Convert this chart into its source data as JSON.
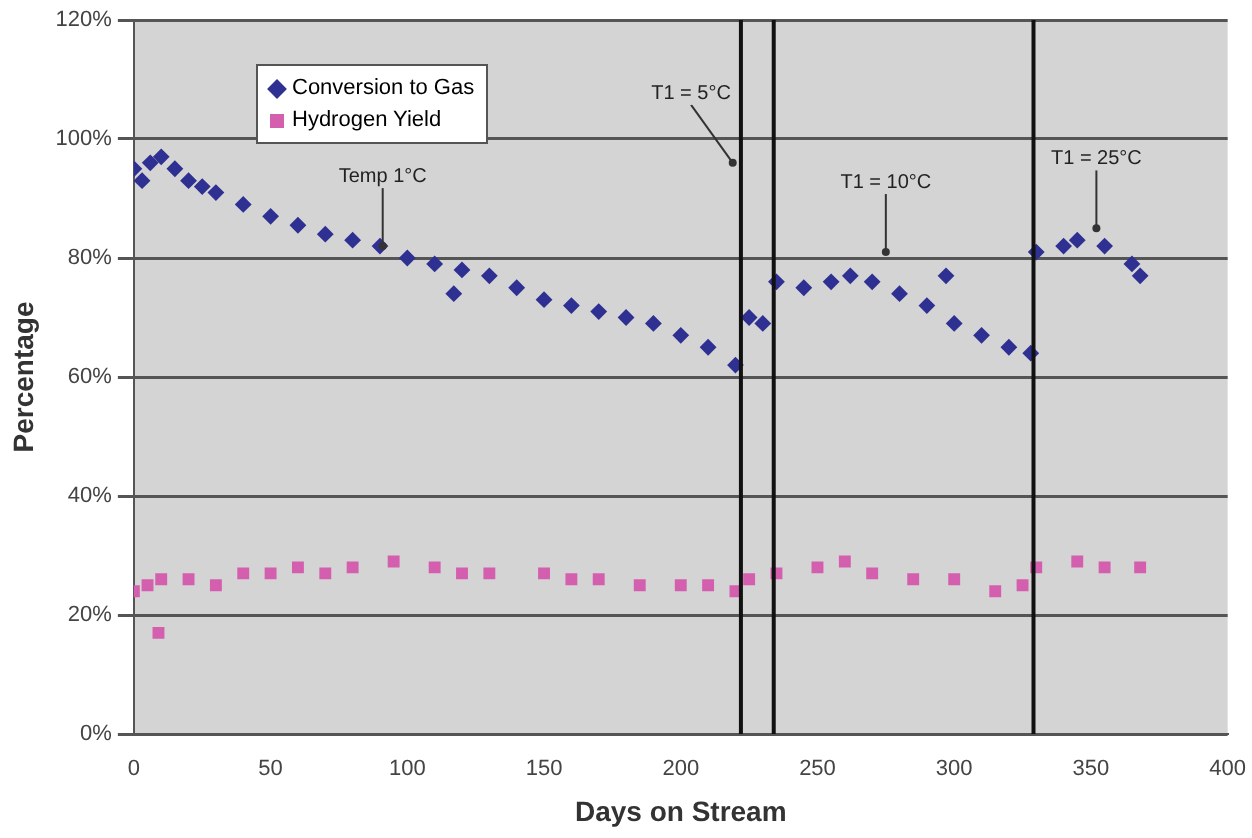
{
  "chart_data": {
    "type": "scatter",
    "xlabel": "Days on Stream",
    "ylabel": "Percentage",
    "xlim": [
      0,
      400
    ],
    "xticks": [
      0,
      50,
      100,
      150,
      200,
      250,
      300,
      350,
      400
    ],
    "ylim": [
      0,
      120
    ],
    "yticks": [
      {
        "value": 0,
        "label": "0%"
      },
      {
        "value": 20,
        "label": "20%"
      },
      {
        "value": 40,
        "label": "40%"
      },
      {
        "value": 60,
        "label": "60%"
      },
      {
        "value": 80,
        "label": "80%"
      },
      {
        "value": 100,
        "label": "100%"
      },
      {
        "value": 120,
        "label": "120%"
      }
    ],
    "grid": "y",
    "legend": "top left",
    "series": [
      {
        "name": "Conversion to Gas",
        "color": "#2e3192",
        "marker": "diamond",
        "x": [
          0,
          3,
          6,
          10,
          15,
          20,
          25,
          30,
          40,
          50,
          60,
          70,
          80,
          90,
          100,
          110,
          117,
          120,
          130,
          140,
          150,
          160,
          170,
          180,
          190,
          200,
          210,
          220,
          225,
          230,
          235,
          245,
          255,
          262,
          270,
          280,
          290,
          297,
          300,
          310,
          320,
          328,
          330,
          340,
          345,
          355,
          365,
          368
        ],
        "values": [
          95,
          93,
          96,
          97,
          95,
          93,
          92,
          91,
          89,
          87,
          85.5,
          84,
          83,
          82,
          80,
          79,
          74,
          78,
          77,
          75,
          73,
          72,
          71,
          70,
          69,
          67,
          65,
          62,
          70,
          69,
          76,
          75,
          76,
          77,
          76,
          74,
          72,
          77,
          69,
          67,
          65,
          64,
          81,
          82,
          83,
          82,
          79,
          77
        ]
      },
      {
        "name": "Hydrogen Yield",
        "color": "#d45fae",
        "marker": "square",
        "x": [
          0,
          5,
          9,
          10,
          20,
          30,
          40,
          50,
          60,
          70,
          80,
          95,
          110,
          120,
          130,
          150,
          160,
          170,
          185,
          200,
          210,
          220,
          225,
          235,
          250,
          260,
          270,
          285,
          300,
          315,
          325,
          330,
          345,
          355,
          368
        ],
        "values": [
          24,
          25,
          17,
          26,
          26,
          25,
          27,
          27,
          28,
          27,
          28,
          29,
          28,
          27,
          27,
          27,
          26,
          26,
          25,
          25,
          25,
          24,
          26,
          27,
          28,
          29,
          27,
          26,
          26,
          24,
          25,
          28,
          29,
          28,
          28
        ]
      }
    ],
    "ref_lines": [
      {
        "axis": "x",
        "value": 222
      },
      {
        "axis": "x",
        "value": 234
      },
      {
        "axis": "x",
        "value": 329
      }
    ],
    "annotations": [
      {
        "text": "Temp 1°C",
        "x": 91,
        "y": 82
      },
      {
        "text": "T1 = 5°C",
        "x": 219,
        "y": 96
      },
      {
        "text": "T1 = 10°C",
        "x": 275,
        "y": 81
      },
      {
        "text": "T1 = 25°C",
        "x": 352,
        "y": 85
      }
    ]
  }
}
